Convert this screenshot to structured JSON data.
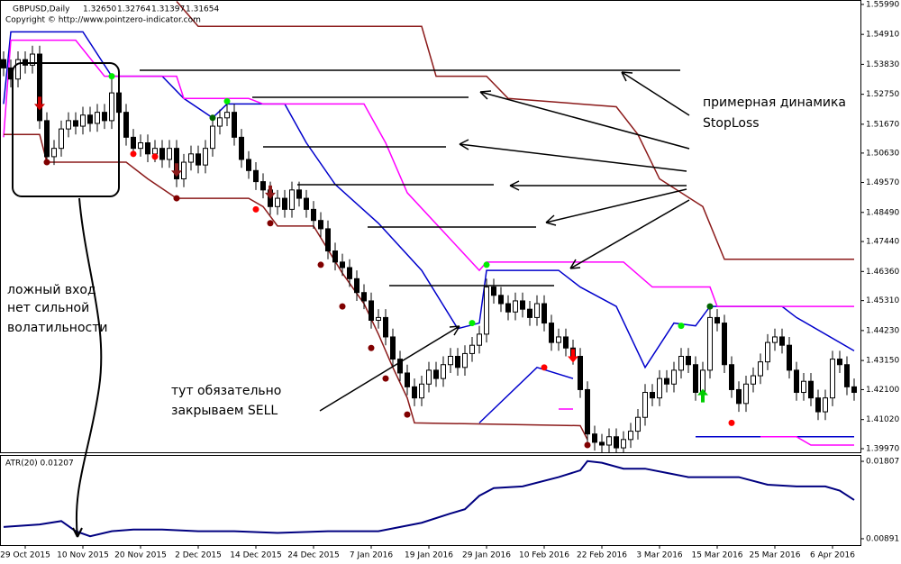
{
  "chart_data": [
    {
      "type": "candlestick",
      "title": "GBPUSD,Daily",
      "header_values": [
        "1.32650",
        "1.32764",
        "1.31397",
        "1.31654"
      ],
      "copyright": "Copyright © http://www.pointzero-indicator.com",
      "categories": [
        null,
        null,
        null,
        "29 Oct 2015",
        null,
        null,
        null,
        null,
        null,
        null,
        null,
        "10 Nov 2015",
        null,
        null,
        null,
        null,
        null,
        null,
        null,
        "20 Nov 2015",
        null,
        null,
        null,
        null,
        null,
        null,
        null,
        "2 Dec 2015",
        null,
        null,
        null,
        null,
        null,
        null,
        null,
        "14 Dec 2015",
        null,
        null,
        null,
        null,
        null,
        null,
        null,
        "24 Dec 2015",
        null,
        null,
        null,
        null,
        null,
        null,
        null,
        "7 Jan 2016",
        null,
        null,
        null,
        null,
        null,
        null,
        null,
        "19 Jan 2016",
        null,
        null,
        null,
        null,
        null,
        null,
        null,
        "29 Jan 2016",
        null,
        null,
        null,
        null,
        null,
        null,
        null,
        "10 Feb 2016",
        null,
        null,
        null,
        null,
        null,
        null,
        null,
        "22 Feb 2016",
        null,
        null,
        null,
        null,
        null,
        null,
        null,
        "3 Mar 2016",
        null,
        null,
        null,
        null,
        null,
        null,
        null,
        "15 Mar 2016",
        null,
        null,
        null,
        null,
        null,
        null,
        null,
        "25 Mar 2016",
        null,
        null,
        null,
        null,
        null,
        null,
        null,
        "6 Apr 2016",
        null,
        null,
        null
      ],
      "open": [
        1.54,
        1.537,
        1.533,
        1.54,
        1.538,
        1.542,
        1.518,
        1.505,
        1.508,
        1.515,
        1.518,
        1.516,
        1.52,
        1.517,
        1.521,
        1.518,
        1.528,
        1.521,
        1.512,
        1.508,
        1.51,
        1.506,
        1.508,
        1.504,
        1.508,
        1.497,
        1.503,
        1.506,
        1.502,
        1.508,
        1.516,
        1.519,
        1.521,
        1.512,
        1.504,
        1.5,
        1.496,
        1.493,
        1.487,
        1.49,
        1.486,
        1.493,
        1.49,
        1.486,
        1.482,
        1.479,
        1.471,
        1.467,
        1.465,
        1.461,
        1.456,
        1.453,
        1.446,
        1.447,
        1.44,
        1.432,
        1.427,
        1.422,
        1.418,
        1.423,
        1.428,
        1.425,
        1.43,
        1.433,
        1.429,
        1.434,
        1.437,
        1.441,
        1.458,
        1.455,
        1.452,
        1.449,
        1.453,
        1.45,
        1.447,
        1.452,
        1.445,
        1.438,
        1.44,
        1.436,
        1.433,
        1.421,
        1.405,
        1.402,
        1.401,
        1.404,
        1.4,
        1.403,
        1.406,
        1.411,
        1.42,
        1.418,
        1.425,
        1.423,
        1.428,
        1.433,
        1.43,
        1.42,
        1.428,
        1.447,
        1.445,
        1.43,
        1.421,
        1.416,
        1.423,
        1.426,
        1.431,
        1.438,
        1.44,
        1.437,
        1.428,
        1.42,
        1.424,
        1.418,
        1.413,
        1.418,
        1.432,
        1.43,
        1.422
      ],
      "high": [
        1.543,
        1.54,
        1.543,
        1.543,
        1.545,
        1.545,
        1.521,
        1.511,
        1.518,
        1.521,
        1.521,
        1.523,
        1.523,
        1.524,
        1.524,
        1.534,
        1.531,
        1.524,
        1.515,
        1.513,
        1.513,
        1.511,
        1.511,
        1.511,
        1.511,
        1.506,
        1.509,
        1.509,
        1.511,
        1.519,
        1.522,
        1.524,
        1.524,
        1.515,
        1.507,
        1.503,
        1.499,
        1.496,
        1.493,
        1.493,
        1.496,
        1.496,
        1.493,
        1.489,
        1.485,
        1.482,
        1.474,
        1.47,
        1.468,
        1.464,
        1.459,
        1.456,
        1.45,
        1.45,
        1.443,
        1.435,
        1.43,
        1.425,
        1.426,
        1.431,
        1.431,
        1.433,
        1.436,
        1.436,
        1.437,
        1.44,
        1.444,
        1.461,
        1.461,
        1.458,
        1.455,
        1.456,
        1.456,
        1.453,
        1.455,
        1.455,
        1.448,
        1.443,
        1.443,
        1.439,
        1.436,
        1.424,
        1.408,
        1.405,
        1.407,
        1.407,
        1.406,
        1.409,
        1.414,
        1.423,
        1.423,
        1.428,
        1.428,
        1.431,
        1.436,
        1.436,
        1.433,
        1.431,
        1.45,
        1.45,
        1.448,
        1.433,
        1.424,
        1.426,
        1.429,
        1.434,
        1.441,
        1.443,
        1.443,
        1.44,
        1.431,
        1.427,
        1.427,
        1.421,
        1.421,
        1.435,
        1.435,
        1.433,
        1.425
      ],
      "low": [
        1.534,
        1.53,
        1.53,
        1.535,
        1.535,
        1.515,
        1.502,
        1.502,
        1.505,
        1.512,
        1.513,
        1.513,
        1.514,
        1.514,
        1.515,
        1.515,
        1.518,
        1.509,
        1.505,
        1.505,
        1.503,
        1.503,
        1.501,
        1.501,
        1.494,
        1.494,
        1.5,
        1.499,
        1.499,
        1.505,
        1.513,
        1.516,
        1.509,
        1.501,
        1.497,
        1.493,
        1.49,
        1.484,
        1.484,
        1.483,
        1.483,
        1.487,
        1.483,
        1.479,
        1.476,
        1.468,
        1.464,
        1.462,
        1.458,
        1.453,
        1.45,
        1.443,
        1.443,
        1.437,
        1.429,
        1.424,
        1.419,
        1.415,
        1.415,
        1.42,
        1.422,
        1.422,
        1.427,
        1.426,
        1.426,
        1.431,
        1.434,
        1.438,
        1.452,
        1.449,
        1.446,
        1.446,
        1.447,
        1.444,
        1.444,
        1.442,
        1.435,
        1.435,
        1.433,
        1.43,
        1.418,
        1.402,
        1.399,
        1.398,
        1.398,
        1.397,
        1.397,
        1.4,
        1.403,
        1.408,
        1.415,
        1.415,
        1.42,
        1.42,
        1.425,
        1.427,
        1.417,
        1.417,
        1.425,
        1.442,
        1.427,
        1.418,
        1.413,
        1.413,
        1.42,
        1.423,
        1.428,
        1.435,
        1.434,
        1.425,
        1.417,
        1.417,
        1.415,
        1.41,
        1.41,
        1.415,
        1.427,
        1.419,
        1.417
      ],
      "close": [
        1.537,
        1.533,
        1.54,
        1.538,
        1.542,
        1.518,
        1.505,
        1.508,
        1.515,
        1.518,
        1.516,
        1.52,
        1.517,
        1.521,
        1.518,
        1.528,
        1.521,
        1.512,
        1.508,
        1.51,
        1.506,
        1.508,
        1.504,
        1.508,
        1.497,
        1.503,
        1.506,
        1.502,
        1.508,
        1.516,
        1.519,
        1.521,
        1.512,
        1.504,
        1.5,
        1.496,
        1.493,
        1.487,
        1.49,
        1.486,
        1.493,
        1.49,
        1.486,
        1.482,
        1.479,
        1.471,
        1.467,
        1.465,
        1.461,
        1.456,
        1.453,
        1.446,
        1.447,
        1.44,
        1.432,
        1.427,
        1.422,
        1.418,
        1.423,
        1.428,
        1.425,
        1.43,
        1.433,
        1.429,
        1.434,
        1.437,
        1.441,
        1.458,
        1.455,
        1.452,
        1.449,
        1.453,
        1.45,
        1.447,
        1.452,
        1.445,
        1.438,
        1.44,
        1.436,
        1.433,
        1.421,
        1.405,
        1.402,
        1.401,
        1.404,
        1.4,
        1.403,
        1.406,
        1.411,
        1.42,
        1.418,
        1.425,
        1.423,
        1.428,
        1.433,
        1.43,
        1.42,
        1.428,
        1.447,
        1.445,
        1.43,
        1.421,
        1.416,
        1.423,
        1.426,
        1.431,
        1.438,
        1.44,
        1.437,
        1.428,
        1.42,
        1.424,
        1.418,
        1.413,
        1.418,
        1.432,
        1.43,
        1.422,
        1.42
      ],
      "indicators": [
        {
          "color": "#0000cc",
          "x": [
            0,
            1,
            11,
            15,
            22,
            25,
            29,
            31,
            39,
            42,
            46,
            52,
            58,
            63,
            66,
            67,
            77,
            80,
            85,
            89,
            93,
            96,
            98,
            108,
            110,
            118
          ],
          "values": [
            1.524,
            1.55,
            1.55,
            1.534,
            1.534,
            1.526,
            1.519,
            1.524,
            1.524,
            1.51,
            1.495,
            1.481,
            1.464,
            1.443,
            1.445,
            1.464,
            1.464,
            1.458,
            1.451,
            1.429,
            1.445,
            1.444,
            1.451,
            1.451,
            1.447,
            1.435
          ]
        },
        {
          "color": "#0000cc",
          "x": [
            66,
            68,
            74,
            79,
            80,
            96,
            118
          ],
          "values": [
            1.409,
            1.414,
            1.429,
            1.425,
            null,
            1.404,
            1.404
          ]
        },
        {
          "color": "#ff00ff",
          "x": [
            0,
            1,
            10,
            14,
            24,
            25,
            34,
            36,
            50,
            53,
            56,
            61,
            66,
            67,
            86,
            90,
            98,
            99,
            118
          ],
          "values": [
            1.512,
            1.547,
            1.547,
            1.534,
            1.534,
            1.526,
            1.526,
            1.524,
            1.524,
            1.51,
            1.492,
            1.478,
            1.464,
            1.467,
            1.467,
            1.458,
            1.458,
            1.451,
            1.451
          ]
        },
        {
          "color": "#ff00ff",
          "x": [
            77,
            79,
            80,
            105,
            110,
            112,
            118
          ],
          "values": [
            1.414,
            1.414,
            null,
            1.404,
            1.404,
            1.401,
            1.401
          ]
        },
        {
          "color": "#8b1a1a",
          "x": [
            24,
            27,
            58,
            60,
            67,
            70,
            85,
            88,
            91,
            97,
            100,
            118
          ],
          "values": [
            1.561,
            1.552,
            1.552,
            1.534,
            1.534,
            1.526,
            1.523,
            1.513,
            1.497,
            1.487,
            1.468,
            1.468
          ]
        },
        {
          "color": "#8b1a1a",
          "x": [
            0,
            5,
            6,
            17,
            20,
            24,
            34,
            36,
            38,
            43,
            47,
            50,
            52,
            54,
            56,
            57,
            80,
            81
          ],
          "values": [
            1.513,
            1.513,
            1.503,
            1.503,
            1.497,
            1.49,
            1.49,
            1.487,
            1.48,
            1.48,
            1.463,
            1.452,
            1.441,
            1.429,
            1.418,
            1.409,
            1.408,
            1.403
          ]
        }
      ],
      "markers": [
        {
          "shape": "dot",
          "color": "#00ee00",
          "x": 15,
          "value": 1.534
        },
        {
          "shape": "dot",
          "color": "#006400",
          "x": 29,
          "value": 1.519
        },
        {
          "shape": "dot",
          "color": "#00ee00",
          "x": 31,
          "value": 1.525
        },
        {
          "shape": "dot",
          "color": "#00ee00",
          "x": 65,
          "value": 1.445
        },
        {
          "shape": "dot",
          "color": "#00ee00",
          "x": 67,
          "value": 1.466
        },
        {
          "shape": "dot",
          "color": "#00ee00",
          "x": 94,
          "value": 1.444
        },
        {
          "shape": "dot",
          "color": "#006400",
          "x": 98,
          "value": 1.451
        },
        {
          "shape": "dot",
          "color": "#ff0000",
          "x": 18,
          "value": 1.506
        },
        {
          "shape": "dot",
          "color": "#ff0000",
          "x": 21,
          "value": 1.505
        },
        {
          "shape": "dot",
          "color": "#ff0000",
          "x": 35,
          "value": 1.486
        },
        {
          "shape": "dot",
          "color": "#ff0000",
          "x": 75,
          "value": 1.429
        },
        {
          "shape": "dot",
          "color": "#ff0000",
          "x": 101,
          "value": 1.409
        },
        {
          "shape": "dot",
          "color": "#800000",
          "x": 6,
          "value": 1.503
        },
        {
          "shape": "dot",
          "color": "#800000",
          "x": 24,
          "value": 1.49
        },
        {
          "shape": "dot",
          "color": "#800000",
          "x": 37,
          "value": 1.481
        },
        {
          "shape": "dot",
          "color": "#800000",
          "x": 44,
          "value": 1.466
        },
        {
          "shape": "dot",
          "color": "#800000",
          "x": 47,
          "value": 1.451
        },
        {
          "shape": "dot",
          "color": "#800000",
          "x": 51,
          "value": 1.436
        },
        {
          "shape": "dot",
          "color": "#800000",
          "x": 53,
          "value": 1.425
        },
        {
          "shape": "dot",
          "color": "#800000",
          "x": 56,
          "value": 1.412
        },
        {
          "shape": "dot",
          "color": "#800000",
          "x": 81,
          "value": 1.401
        },
        {
          "shape": "down",
          "color": "#cc0000",
          "x": 5,
          "value": 1.524
        },
        {
          "shape": "down",
          "color": "#8b1a1a",
          "x": 24,
          "value": 1.5
        },
        {
          "shape": "down",
          "color": "#8b1a1a",
          "x": 37,
          "value": 1.492
        },
        {
          "shape": "down",
          "color": "#ff0000",
          "x": 79,
          "value": 1.433
        },
        {
          "shape": "up",
          "color": "#00cc00",
          "x": 97,
          "value": 1.419
        }
      ],
      "annotations": [
        "примерная динамика",
        "StopLoss",
        "ложный вход",
        "нет сильной",
        "волатильности",
        "тут обязательно",
        "закрываем SELL"
      ],
      "ylim": [
        1.3984,
        1.5615
      ],
      "yticks": [
        {
          "value": 1.5599,
          "label": "1.55990"
        },
        {
          "value": 1.5491,
          "label": "1.54910"
        },
        {
          "value": 1.5383,
          "label": "1.53830"
        },
        {
          "value": 1.5275,
          "label": "1.52750"
        },
        {
          "value": 1.5167,
          "label": "1.51670"
        },
        {
          "value": 1.5063,
          "label": "1.50630"
        },
        {
          "value": 1.4957,
          "label": "1.49570"
        },
        {
          "value": 1.4849,
          "label": "1.48490"
        },
        {
          "value": 1.4744,
          "label": "1.47440"
        },
        {
          "value": 1.4636,
          "label": "1.46360"
        },
        {
          "value": 1.4531,
          "label": "1.45310"
        },
        {
          "value": 1.4423,
          "label": "1.44230"
        },
        {
          "value": 1.4315,
          "label": "1.43150"
        },
        {
          "value": 1.421,
          "label": "1.42100"
        },
        {
          "value": 1.4102,
          "label": "1.41020"
        },
        {
          "value": 1.3997,
          "label": "1.39970"
        }
      ]
    },
    {
      "type": "line",
      "title": "ATR(20) 0.01207",
      "color": "#000080",
      "x": [
        0,
        5,
        8,
        10,
        12,
        15,
        18,
        22,
        27,
        32,
        38,
        45,
        52,
        58,
        62,
        64,
        66,
        68,
        72,
        77,
        80,
        81,
        83,
        86,
        89,
        92,
        95,
        98,
        102,
        106,
        110,
        114,
        116,
        118
      ],
      "values": [
        0.0103,
        0.0106,
        0.011,
        0.0098,
        0.0092,
        0.0098,
        0.01,
        0.01,
        0.0098,
        0.0098,
        0.0096,
        0.0098,
        0.0098,
        0.0108,
        0.0119,
        0.0124,
        0.014,
        0.0149,
        0.0151,
        0.0162,
        0.017,
        0.0181,
        0.0179,
        0.0172,
        0.0172,
        0.0167,
        0.0162,
        0.0162,
        0.0162,
        0.0153,
        0.0151,
        0.0151,
        0.0146,
        0.0135
      ],
      "ylim": [
        0.00816,
        0.01882
      ],
      "yticks": [
        0.01807,
        0.00891
      ]
    }
  ]
}
